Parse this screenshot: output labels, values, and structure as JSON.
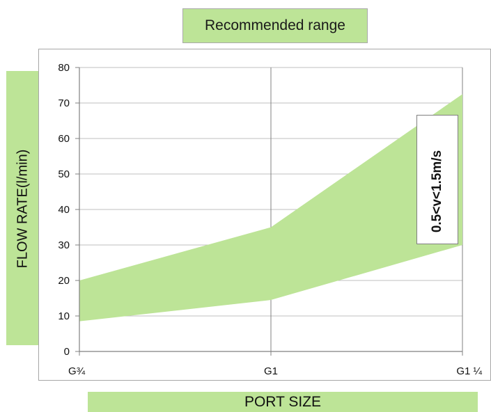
{
  "chart_data": {
    "type": "area",
    "categories": [
      "G¾",
      "G1",
      "G1 ¼"
    ],
    "series": [
      {
        "name": "Recommended range",
        "lower": [
          8.5,
          14.5,
          30
        ],
        "upper": [
          20,
          35,
          72.5
        ]
      }
    ],
    "xlabel": "PORT SIZE",
    "ylabel": "FLOW RATE(l/min)",
    "ylim": [
      0,
      80
    ],
    "yticks": [
      0,
      10,
      20,
      30,
      40,
      50,
      60,
      70,
      80
    ],
    "annotation": "0.5<v<1.5m/s",
    "grid": true,
    "legend": "top",
    "colors": {
      "fill": "#bde497",
      "grid": "#bfbfbf",
      "axis": "#808080"
    }
  }
}
